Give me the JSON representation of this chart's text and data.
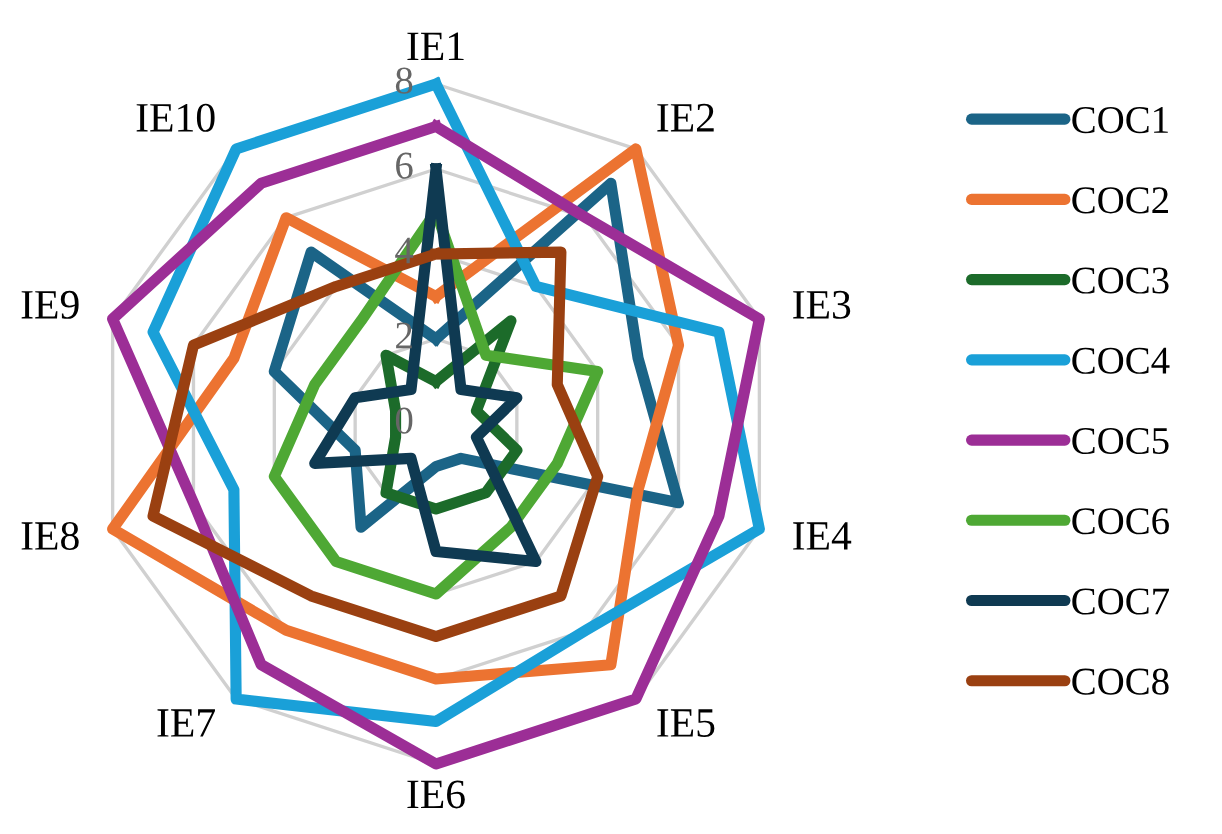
{
  "chart_data": {
    "type": "radar",
    "categories": [
      "IE1",
      "IE2",
      "IE3",
      "IE4",
      "IE5",
      "IE6",
      "IE7",
      "IE8",
      "IE9",
      "IE10"
    ],
    "ylim": [
      0,
      8
    ],
    "yticks": [
      0,
      2,
      4,
      6,
      8
    ],
    "grid": true,
    "legend": "right",
    "series": [
      {
        "name": "COC1",
        "color": "#1b6487",
        "values": [
          2,
          7,
          5,
          6,
          1,
          1,
          3,
          2,
          4,
          5
        ]
      },
      {
        "name": "COC2",
        "color": "#ec7331",
        "values": [
          3,
          8,
          6,
          5,
          7,
          6,
          6,
          8,
          5,
          6
        ]
      },
      {
        "name": "COC3",
        "color": "#1c6b2a",
        "values": [
          1,
          3,
          1,
          2,
          2,
          2,
          2,
          1,
          1,
          2
        ]
      },
      {
        "name": "COC4",
        "color": "#1aa0d8",
        "values": [
          8,
          4,
          7,
          8,
          6,
          7,
          8,
          5,
          7,
          8
        ]
      },
      {
        "name": "COC5",
        "color": "#9c2e96",
        "values": [
          7,
          6,
          8,
          7,
          8,
          8,
          7,
          6,
          8,
          7
        ]
      },
      {
        "name": "COC6",
        "color": "#4ea834",
        "values": [
          5,
          2,
          4,
          3,
          3,
          4,
          4,
          4,
          3,
          3
        ]
      },
      {
        "name": "COC7",
        "color": "#0f3a52",
        "values": [
          6,
          1,
          2,
          1,
          4,
          3,
          1,
          3,
          2,
          1
        ]
      },
      {
        "name": "COC8",
        "color": "#9a4011",
        "values": [
          4,
          5,
          3,
          4,
          5,
          5,
          5,
          7,
          6,
          4
        ]
      }
    ]
  }
}
